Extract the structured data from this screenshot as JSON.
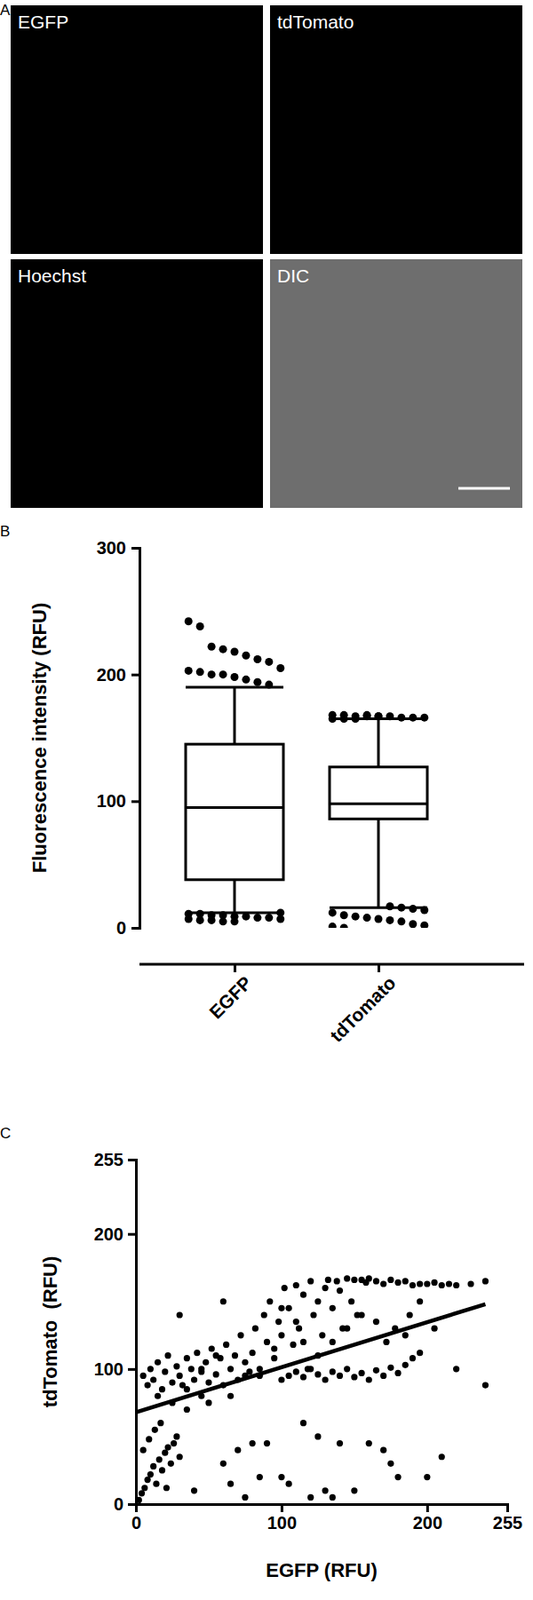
{
  "chart_data": [
    {
      "type": "image_grid",
      "panel_label": "A",
      "images": [
        {
          "label": "EGFP",
          "color": "#000000"
        },
        {
          "label": "tdTomato",
          "color": "#000000"
        },
        {
          "label": "Hoechst",
          "color": "#000000"
        },
        {
          "label": "DIC",
          "color": "#6e6e6e"
        }
      ]
    },
    {
      "type": "box",
      "panel_label": "B",
      "y_label": "Fluorescence intensity (RFU)",
      "categories": [
        "EGFP",
        "tdTomato"
      ],
      "ylim": [
        0,
        300
      ],
      "yticks": [
        0,
        100,
        200,
        300
      ],
      "color": "#000000",
      "boxes": [
        {
          "low": 12,
          "q1": 38,
          "median": 95,
          "q3": 145,
          "high": 190,
          "outliers": [
            242,
            238,
            222,
            220,
            218,
            215,
            212,
            210,
            205,
            203,
            202,
            200,
            200,
            198,
            196,
            194,
            192,
            12,
            11,
            11,
            10,
            10,
            9,
            9,
            8,
            8,
            7,
            7,
            6,
            6,
            5,
            5
          ]
        },
        {
          "low": 16,
          "q1": 86,
          "median": 98,
          "q3": 127,
          "high": 165,
          "outliers": [
            168,
            168,
            167,
            167,
            167,
            167,
            166,
            166,
            166,
            165,
            165,
            165,
            168,
            167,
            17,
            16,
            15,
            14,
            12,
            10,
            9,
            8,
            7,
            6,
            5,
            3,
            2,
            1,
            0
          ]
        }
      ]
    },
    {
      "type": "scatter",
      "panel_label": "C",
      "x_label": "EGFP (RFU)",
      "y_label": "tdTomato  (RFU)",
      "xlim": [
        0,
        255
      ],
      "ylim": [
        0,
        255
      ],
      "xticks": [
        0,
        100,
        200,
        255
      ],
      "yticks": [
        0,
        100,
        200,
        255
      ],
      "color": "#000000",
      "marker": "circle",
      "x": [
        2,
        4,
        6,
        8,
        10,
        12,
        14,
        16,
        18,
        20,
        22,
        24,
        26,
        28,
        5,
        9,
        13,
        17,
        21,
        30,
        5,
        8,
        10,
        12,
        15,
        18,
        20,
        22,
        25,
        28,
        30,
        32,
        35,
        38,
        40,
        42,
        45,
        48,
        50,
        52,
        55,
        58,
        60,
        62,
        65,
        68,
        70,
        72,
        75,
        78,
        80,
        82,
        85,
        88,
        90,
        92,
        95,
        98,
        100,
        102,
        105,
        108,
        110,
        112,
        115,
        118,
        120,
        122,
        125,
        128,
        130,
        132,
        135,
        138,
        140,
        142,
        145,
        148,
        150,
        152,
        155,
        158,
        160,
        165,
        170,
        175,
        180,
        185,
        190,
        195,
        200,
        205,
        210,
        215,
        220,
        230,
        240,
        172,
        178,
        188,
        100,
        105,
        110,
        115,
        120,
        125,
        130,
        135,
        140,
        145,
        150,
        155,
        160,
        165,
        170,
        175,
        180,
        185,
        190,
        195,
        60,
        65,
        70,
        75,
        80,
        85,
        90,
        100,
        105,
        115,
        120,
        125,
        130,
        135,
        140,
        150,
        160,
        170,
        175,
        180,
        200,
        210,
        220,
        240,
        30,
        60,
        40,
        45,
        50,
        35,
        15,
        25,
        35,
        45,
        55,
        65,
        75,
        85,
        95,
        110,
        100,
        115,
        125,
        135,
        145,
        155,
        165,
        185,
        195,
        205
      ],
      "y": [
        3,
        8,
        12,
        18,
        22,
        28,
        15,
        33,
        25,
        38,
        42,
        30,
        45,
        50,
        40,
        48,
        55,
        60,
        12,
        35,
        95,
        88,
        100,
        92,
        105,
        85,
        98,
        110,
        90,
        102,
        95,
        88,
        108,
        100,
        92,
        112,
        98,
        105,
        90,
        115,
        96,
        108,
        88,
        118,
        100,
        110,
        92,
        125,
        105,
        98,
        112,
        130,
        95,
        140,
        120,
        150,
        108,
        135,
        125,
        160,
        145,
        118,
        162,
        130,
        155,
        100,
        165,
        140,
        150,
        125,
        160,
        166,
        145,
        165,
        158,
        130,
        167,
        150,
        166,
        140,
        166,
        164,
        167,
        165,
        163,
        166,
        164,
        165,
        162,
        163,
        163,
        164,
        162,
        163,
        162,
        163,
        165,
        120,
        130,
        140,
        92,
        95,
        98,
        94,
        100,
        96,
        92,
        98,
        95,
        100,
        94,
        97,
        92,
        99,
        95,
        101,
        97,
        103,
        108,
        112,
        30,
        15,
        40,
        5,
        45,
        20,
        45,
        20,
        15,
        60,
        5,
        50,
        10,
        5,
        45,
        10,
        45,
        40,
        30,
        20,
        20,
        35,
        100,
        88,
        140,
        150,
        10,
        80,
        75,
        70,
        80,
        75,
        85,
        100,
        110,
        80,
        95,
        100,
        115,
        135,
        145,
        120,
        110,
        120,
        130,
        140,
        135,
        125,
        150,
        130
      ],
      "fit": {
        "x": [
          0,
          240
        ],
        "y": [
          68,
          148
        ]
      }
    }
  ]
}
